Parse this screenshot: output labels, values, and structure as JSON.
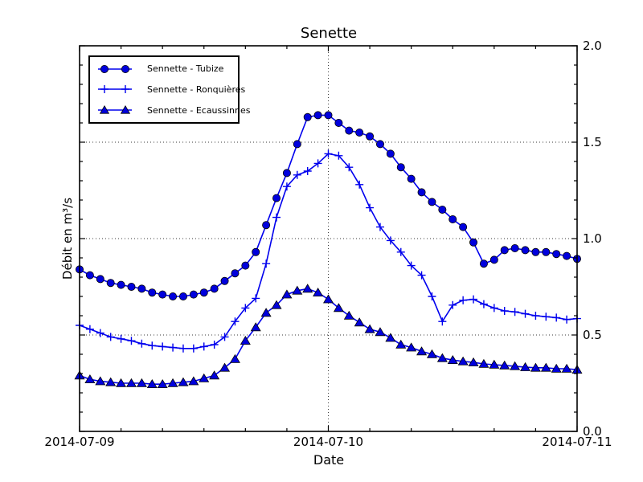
{
  "title": "Senette",
  "axes": {
    "x_label": "Date",
    "y_label": "Débit en m³/s",
    "x_ticks": [
      "2014-07-09",
      "2014-07-10",
      "2014-07-11"
    ],
    "y_ticks": [
      "0.0",
      "0.5",
      "1.0",
      "1.5",
      "2.0"
    ],
    "y_tick_values": [
      0.0,
      0.5,
      1.0,
      1.5,
      2.0
    ],
    "y_tick_side": "right",
    "x_minor_tick_hours": 4,
    "y_minor_tick_step": 0.1
  },
  "legend": {
    "position": "upper-left",
    "items": [
      {
        "label": "Sennette - Tubize",
        "marker": "circle"
      },
      {
        "label": "Sennette - Ronquières",
        "marker": "plus"
      },
      {
        "label": "Sennette - Ecaussinnes",
        "marker": "triangle-up"
      }
    ]
  },
  "colors": {
    "line": "#0000ee",
    "marker_fill": "#0000dd",
    "marker_edge": "#000000",
    "grid": "#3a3a3a",
    "frame": "#000000",
    "background": "#ffffff"
  },
  "chart_data": {
    "type": "line",
    "title": "Senette",
    "xlabel": "Date",
    "ylabel": "Débit en m³/s",
    "x_range": [
      "2014-07-09 00:00",
      "2014-07-11 00:00"
    ],
    "ylim": [
      0.0,
      2.0
    ],
    "grid": "dotted gridlines at 2014-07-10 (vertical) and y = 0.5, 1.0, 1.5 (horizontal)",
    "legend_position": "upper left",
    "x_unit": "hours since 2014-07-09 00:00",
    "x_hours": [
      0,
      1,
      2,
      3,
      4,
      5,
      6,
      7,
      8,
      9,
      10,
      11,
      12,
      13,
      14,
      15,
      16,
      17,
      18,
      19,
      20,
      21,
      22,
      23,
      24,
      25,
      26,
      27,
      28,
      29,
      30,
      31,
      32,
      33,
      34,
      35,
      36,
      37,
      38,
      39,
      40,
      41,
      42,
      43,
      44,
      45,
      46,
      47,
      48
    ],
    "series": [
      {
        "name": "Sennette - Tubize",
        "id": "tubize",
        "marker": "circle",
        "values": [
          0.84,
          0.81,
          0.79,
          0.77,
          0.76,
          0.75,
          0.74,
          0.72,
          0.71,
          0.7,
          0.7,
          0.71,
          0.72,
          0.74,
          0.78,
          0.82,
          0.86,
          0.93,
          1.07,
          1.21,
          1.34,
          1.49,
          1.63,
          1.64,
          1.64,
          1.6,
          1.56,
          1.55,
          1.53,
          1.49,
          1.44,
          1.37,
          1.31,
          1.24,
          1.19,
          1.15,
          1.1,
          1.06,
          0.98,
          0.87,
          0.89,
          0.94,
          0.95,
          0.94,
          0.93,
          0.93,
          0.92,
          0.91,
          0.895
        ]
      },
      {
        "name": "Sennette - Ronquières",
        "id": "ronquieres",
        "marker": "plus",
        "values": [
          0.55,
          0.53,
          0.51,
          0.49,
          0.48,
          0.47,
          0.455,
          0.445,
          0.44,
          0.435,
          0.43,
          0.43,
          0.44,
          0.45,
          0.49,
          0.57,
          0.64,
          0.69,
          0.87,
          1.11,
          1.27,
          1.33,
          1.35,
          1.39,
          1.44,
          1.43,
          1.37,
          1.28,
          1.16,
          1.06,
          0.99,
          0.93,
          0.86,
          0.81,
          0.7,
          0.57,
          0.655,
          0.68,
          0.685,
          0.66,
          0.64,
          0.625,
          0.62,
          0.61,
          0.6,
          0.595,
          0.59,
          0.58,
          0.585
        ]
      },
      {
        "name": "Sennette - Ecaussinnes",
        "id": "ecaussinnes",
        "marker": "triangle-up",
        "values": [
          0.29,
          0.27,
          0.26,
          0.255,
          0.25,
          0.25,
          0.25,
          0.245,
          0.245,
          0.25,
          0.255,
          0.26,
          0.275,
          0.29,
          0.33,
          0.375,
          0.47,
          0.54,
          0.615,
          0.655,
          0.71,
          0.73,
          0.74,
          0.72,
          0.685,
          0.64,
          0.6,
          0.565,
          0.53,
          0.515,
          0.485,
          0.45,
          0.435,
          0.415,
          0.4,
          0.38,
          0.37,
          0.363,
          0.358,
          0.35,
          0.346,
          0.342,
          0.338,
          0.333,
          0.33,
          0.33,
          0.325,
          0.325,
          0.32
        ]
      }
    ]
  }
}
